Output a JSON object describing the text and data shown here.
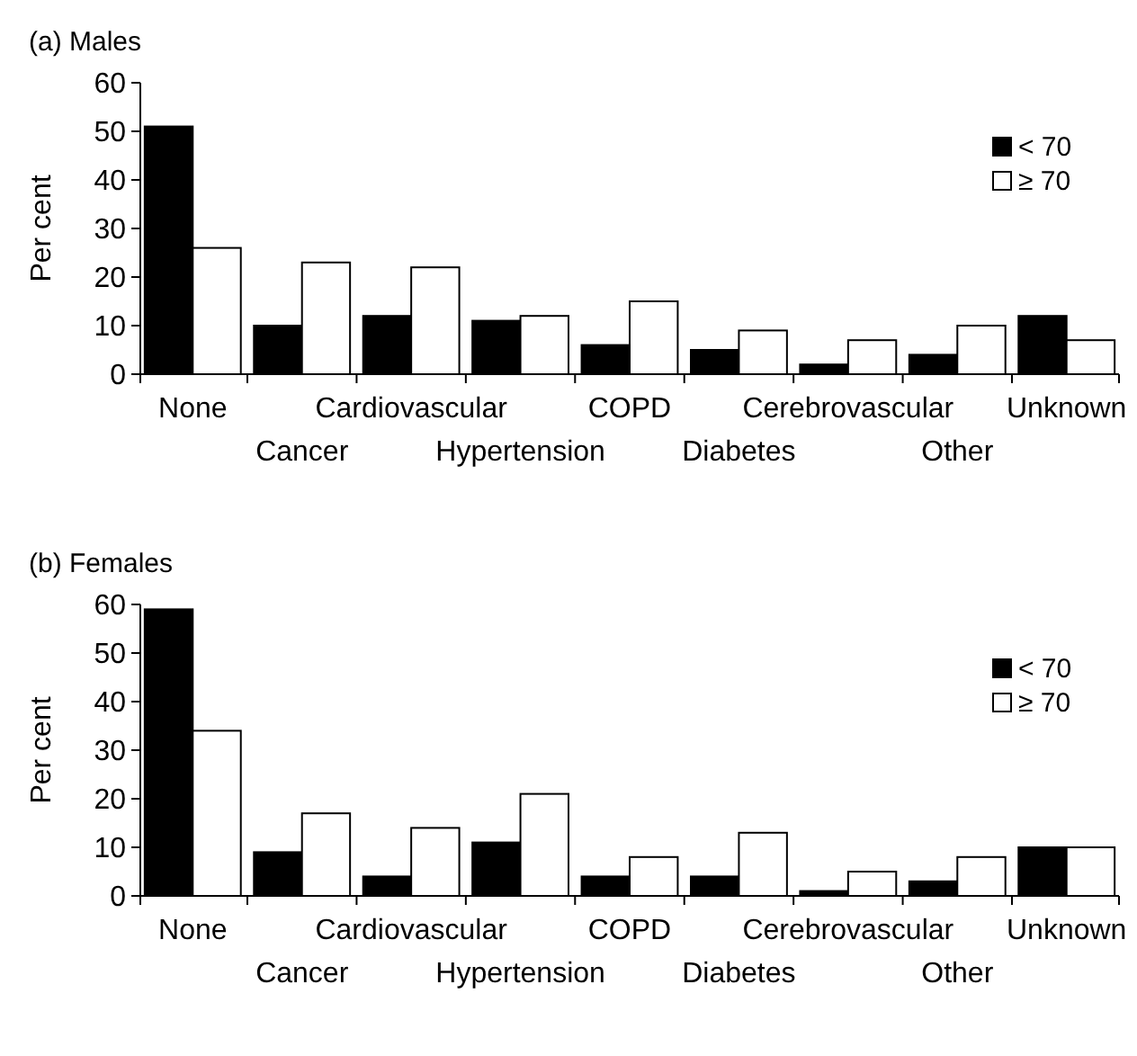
{
  "chart_data": [
    {
      "type": "bar",
      "title": "(a) Males",
      "ylabel": "Per cent",
      "categories": [
        "None",
        "Cancer",
        "Cardiovascular",
        "Hypertension",
        "COPD",
        "Diabetes",
        "Cerebrovascular",
        "Other",
        "Unknown"
      ],
      "series": [
        {
          "name": "< 70",
          "color": "#000000",
          "values": [
            51,
            10,
            12,
            11,
            6,
            5,
            2,
            4,
            12
          ]
        },
        {
          "name": "≥ 70",
          "color": "#ffffff",
          "values": [
            26,
            23,
            22,
            12,
            15,
            9,
            7,
            10,
            7
          ]
        }
      ],
      "ylim": [
        0,
        60
      ],
      "yticks": [
        0,
        10,
        20,
        30,
        40,
        50,
        60
      ],
      "grid": false,
      "legend": "right"
    },
    {
      "type": "bar",
      "title": "(b) Females",
      "ylabel": "Per cent",
      "categories": [
        "None",
        "Cancer",
        "Cardiovascular",
        "Hypertension",
        "COPD",
        "Diabetes",
        "Cerebrovascular",
        "Other",
        "Unknown"
      ],
      "series": [
        {
          "name": "< 70",
          "color": "#000000",
          "values": [
            59,
            9,
            4,
            11,
            4,
            4,
            1,
            3,
            10
          ]
        },
        {
          "name": "≥ 70",
          "color": "#ffffff",
          "values": [
            34,
            17,
            14,
            21,
            8,
            13,
            5,
            8,
            10
          ]
        }
      ],
      "ylim": [
        0,
        60
      ],
      "yticks": [
        0,
        10,
        20,
        30,
        40,
        50,
        60
      ],
      "grid": false,
      "legend": "right"
    }
  ]
}
